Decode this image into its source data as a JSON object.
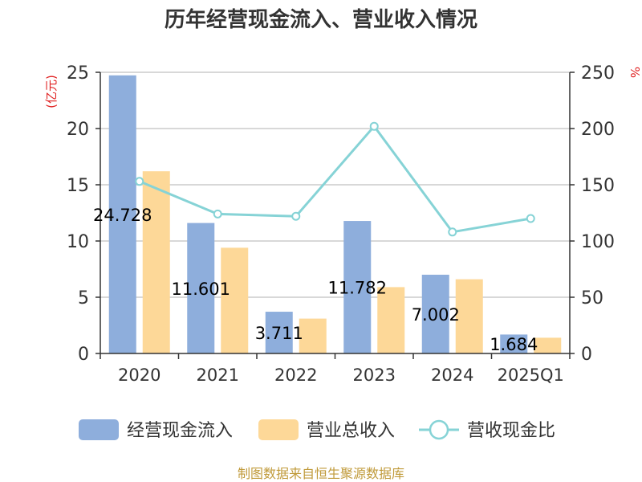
{
  "chart_data": {
    "type": "bar",
    "title": "历年经营现金流入、营业收入情况",
    "categories": [
      "2020",
      "2021",
      "2022",
      "2023",
      "2024",
      "2025Q1"
    ],
    "left_axis": {
      "unit_label": "(亿元)",
      "ylim": [
        0,
        25
      ],
      "ticks": [
        0,
        5,
        10,
        15,
        20,
        25
      ]
    },
    "right_axis": {
      "unit_label": "%",
      "ylim": [
        0,
        250
      ],
      "ticks": [
        0,
        50,
        100,
        150,
        200,
        250
      ]
    },
    "series": [
      {
        "name": "经营现金流入",
        "type": "bar",
        "axis": "left",
        "color": "#8eaedc",
        "values": [
          24.728,
          11.601,
          3.711,
          11.782,
          7.002,
          1.684
        ],
        "labels": [
          "24.728",
          "11.601",
          "3.711",
          "11.782",
          "7.002",
          "1.684"
        ]
      },
      {
        "name": "营业总收入",
        "type": "bar",
        "axis": "left",
        "color": "#fdd898",
        "values": [
          16.2,
          9.4,
          3.1,
          5.9,
          6.6,
          1.4
        ]
      },
      {
        "name": "营收现金比",
        "type": "line",
        "axis": "right",
        "color": "#86d3d6",
        "values": [
          153,
          124,
          122,
          202,
          108,
          120
        ]
      }
    ],
    "grid": true,
    "legend_position": "bottom",
    "source": "制图数据来自恒生聚源数据库"
  }
}
